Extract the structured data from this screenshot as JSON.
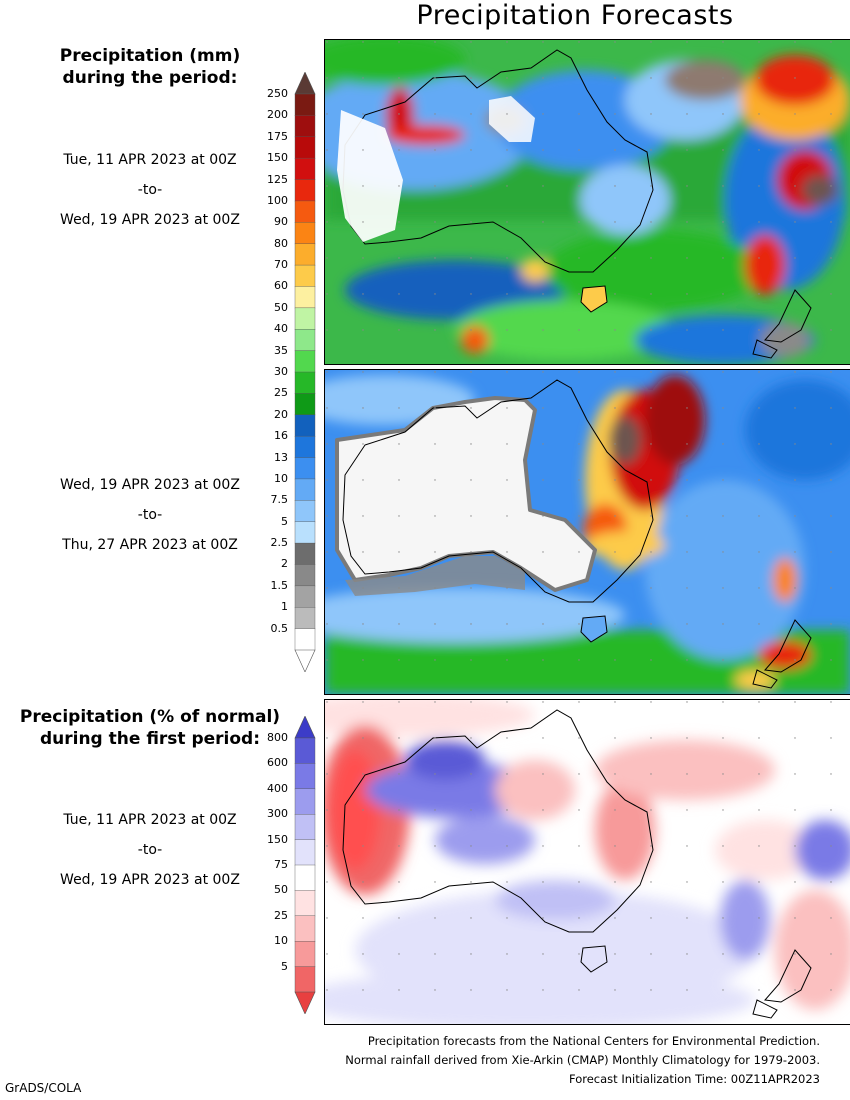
{
  "header": {
    "title": "Precipitation Forecasts"
  },
  "mm_legend": {
    "heading_line1": "Precipitation (mm)",
    "heading_line2": "during the period:",
    "ticks": [
      "250",
      "200",
      "175",
      "150",
      "125",
      "100",
      "90",
      "80",
      "70",
      "60",
      "50",
      "40",
      "35",
      "30",
      "25",
      "20",
      "16",
      "13",
      "10",
      "7.5",
      "5",
      "2.5",
      "2",
      "1.5",
      "1",
      "0.5"
    ],
    "colors": [
      "#7a1a12",
      "#9e0e0e",
      "#b80a0a",
      "#d10f0f",
      "#e8280d",
      "#f55a10",
      "#fb8414",
      "#fcad2c",
      "#fdcb4a",
      "#fdf0a0",
      "#c0f4a4",
      "#8ee88a",
      "#52d84e",
      "#26b828",
      "#0f9a17",
      "#1261bd",
      "#1e76dc",
      "#3c8ff0",
      "#63aaf5",
      "#8fc6fa",
      "#b9e0fd",
      "#6d6d6d",
      "#898989",
      "#a3a3a3",
      "#bbbbbb",
      "#ffffff"
    ],
    "top_arrow_color": "#5a3a34",
    "bottom_arrow_color": "#ffffff"
  },
  "period1": {
    "start": "Tue, 11 APR 2023 at 00Z",
    "to": "-to-",
    "end": "Wed, 19 APR 2023 at 00Z"
  },
  "period2": {
    "start": "Wed, 19 APR 2023 at 00Z",
    "to": "-to-",
    "end": "Thu, 27 APR 2023 at 00Z"
  },
  "pct_legend": {
    "heading_line1": "Precipitation (% of normal)",
    "heading_line2": "during the first period:",
    "ticks": [
      "800",
      "600",
      "400",
      "300",
      "150",
      "75",
      "50",
      "25",
      "10",
      "5"
    ],
    "colors": [
      "#5a5ad6",
      "#7a7ae6",
      "#9c9cee",
      "#c0c0f5",
      "#e2e2fb",
      "#ffffff",
      "#ffe2e2",
      "#fbc0c0",
      "#f79a9a",
      "#f06666"
    ],
    "top_arrow_color": "#3c3cc8",
    "bottom_arrow_color": "#e84040"
  },
  "period3": {
    "start": "Tue, 11 APR 2023 at 00Z",
    "to": "-to-",
    "end": "Wed, 19 APR 2023 at 00Z"
  },
  "footer": {
    "line1": "Precipitation forecasts from the National Centers for Environmental Prediction.",
    "line2": "Normal rainfall derived from Xie-Arkin (CMAP) Monthly Climatology for 1979-2003.",
    "line3": "Forecast Initialization Time: 00Z11APR2023"
  },
  "credit": "GrADS/COLA"
}
